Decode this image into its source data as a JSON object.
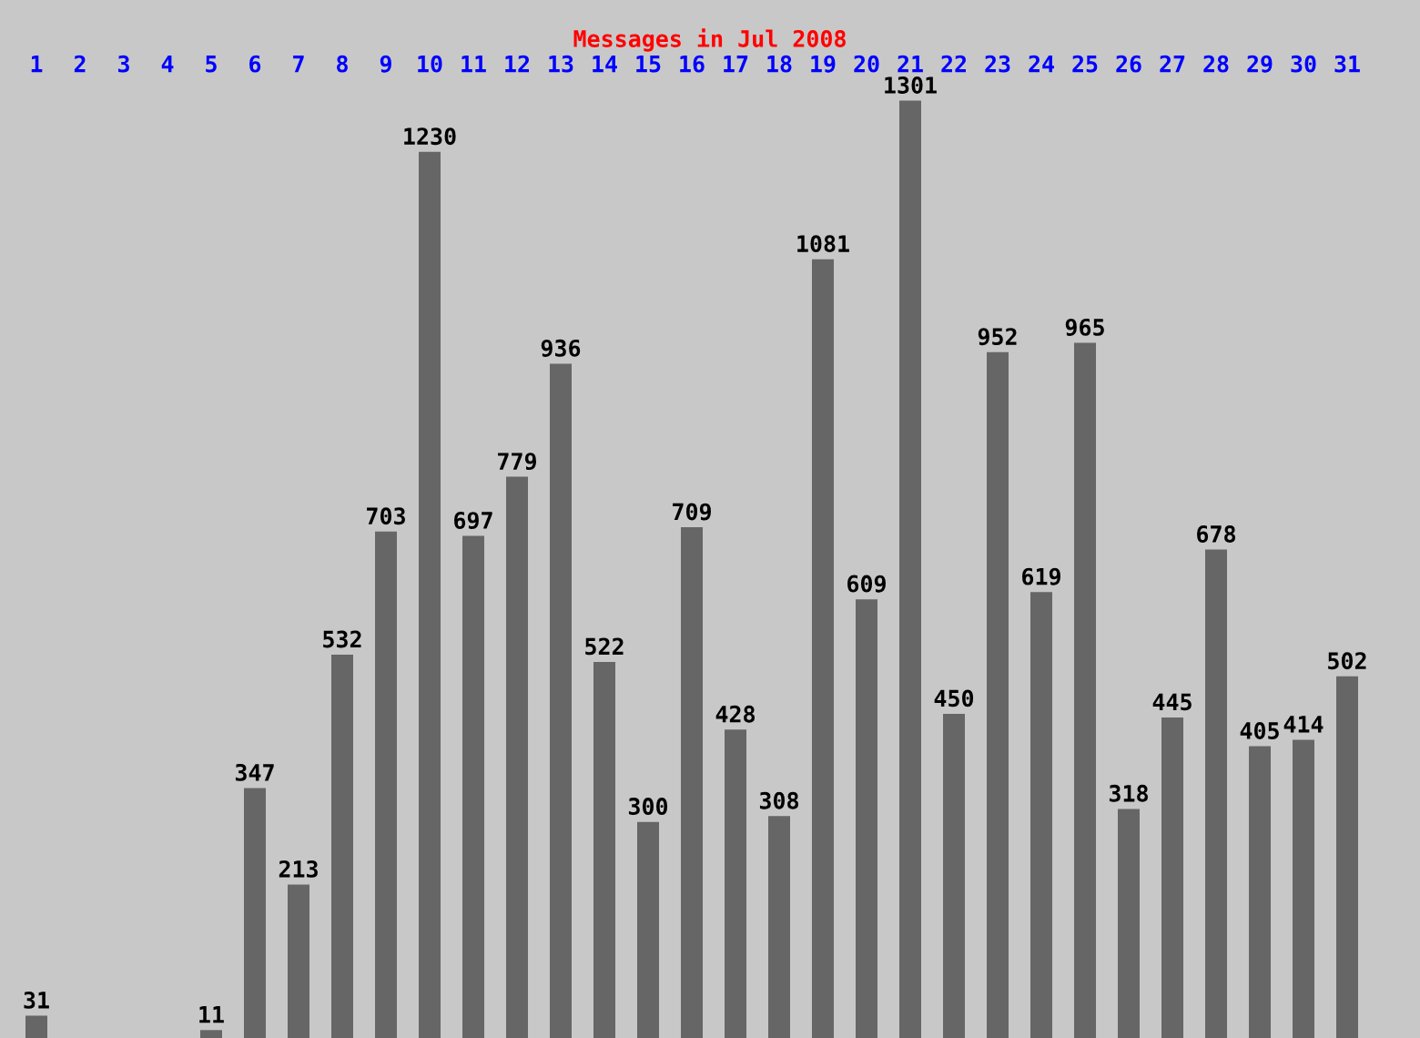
{
  "chart_data": {
    "type": "bar",
    "title": "Messages in Jul 2008",
    "categories": [
      "1",
      "2",
      "3",
      "4",
      "5",
      "6",
      "7",
      "8",
      "9",
      "10",
      "11",
      "12",
      "13",
      "14",
      "15",
      "16",
      "17",
      "18",
      "19",
      "20",
      "21",
      "22",
      "23",
      "24",
      "25",
      "26",
      "27",
      "28",
      "29",
      "30",
      "31"
    ],
    "values": [
      31,
      null,
      null,
      null,
      11,
      347,
      213,
      532,
      703,
      1230,
      697,
      779,
      936,
      522,
      300,
      709,
      428,
      308,
      1081,
      609,
      1301,
      450,
      952,
      619,
      965,
      318,
      445,
      678,
      405,
      414,
      502
    ],
    "color": "#666666",
    "data_labels": true,
    "grid": false,
    "legend": false
  }
}
